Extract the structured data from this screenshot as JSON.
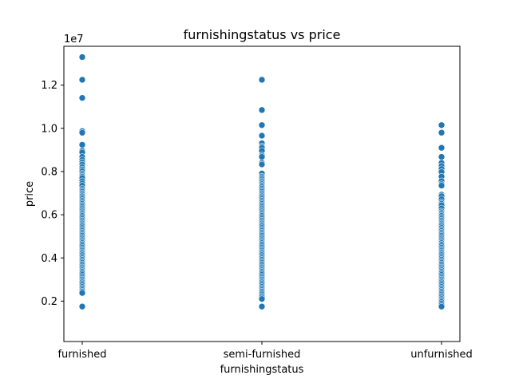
{
  "chart_data": {
    "type": "scatter",
    "title": "furnishingstatus vs price",
    "xlabel": "furnishingstatus",
    "ylabel": "price",
    "y_offset_label": "1e7",
    "categories": [
      "furnished",
      "semi-furnished",
      "unfurnished"
    ],
    "yticks": [
      0.2,
      0.4,
      0.6,
      0.8,
      1.0,
      1.2
    ],
    "ytick_labels": [
      "0.2",
      "0.4",
      "0.6",
      "0.8",
      "1.0",
      "1.2"
    ],
    "ylim": [
      0.13,
      13.8
    ],
    "y_scale_note": "y tick labels are in units of 1e7",
    "grid": false,
    "legend": "none",
    "point_color": "#1f77b4",
    "series": [
      {
        "category": "furnished",
        "values": [
          13.3,
          12.25,
          11.41,
          9.87,
          9.8,
          9.24,
          8.96,
          8.89,
          8.68,
          8.54,
          8.43,
          8.33,
          8.2,
          8.1,
          8.01,
          7.91,
          7.84,
          7.77,
          7.7,
          7.56,
          7.45,
          7.35,
          7.21,
          7.14,
          7.07,
          7.0,
          6.93,
          6.86,
          6.79,
          6.72,
          6.65,
          6.58,
          6.51,
          6.44,
          6.37,
          6.3,
          6.23,
          6.16,
          6.09,
          6.02,
          5.95,
          5.88,
          5.81,
          5.74,
          5.67,
          5.6,
          5.53,
          5.46,
          5.39,
          5.32,
          5.25,
          5.18,
          5.11,
          5.04,
          4.97,
          4.9,
          4.83,
          4.76,
          4.69,
          4.62,
          4.55,
          4.48,
          4.41,
          4.34,
          4.27,
          4.2,
          4.13,
          4.06,
          3.99,
          3.92,
          3.85,
          3.78,
          3.71,
          3.64,
          3.57,
          3.5,
          3.43,
          3.36,
          3.29,
          3.22,
          3.15,
          3.08,
          3.01,
          2.94,
          2.87,
          2.8,
          2.73,
          2.66,
          2.59,
          2.52,
          2.45,
          2.38,
          1.75
        ]
      },
      {
        "category": "semi-furnished",
        "values": [
          12.25,
          10.85,
          10.15,
          9.66,
          9.31,
          9.17,
          9.1,
          8.96,
          8.75,
          8.68,
          8.4,
          8.33,
          7.91,
          7.77,
          7.7,
          7.63,
          7.56,
          7.49,
          7.42,
          7.35,
          7.28,
          7.21,
          7.14,
          7.07,
          7.0,
          6.93,
          6.86,
          6.79,
          6.72,
          6.65,
          6.58,
          6.51,
          6.44,
          6.37,
          6.3,
          6.23,
          6.16,
          6.09,
          6.02,
          5.95,
          5.88,
          5.81,
          5.74,
          5.67,
          5.6,
          5.53,
          5.46,
          5.39,
          5.32,
          5.25,
          5.18,
          5.11,
          5.04,
          4.97,
          4.9,
          4.83,
          4.76,
          4.69,
          4.62,
          4.55,
          4.48,
          4.41,
          4.34,
          4.27,
          4.2,
          4.13,
          4.06,
          3.99,
          3.92,
          3.85,
          3.78,
          3.71,
          3.64,
          3.57,
          3.5,
          3.43,
          3.36,
          3.29,
          3.22,
          3.15,
          3.08,
          3.01,
          2.94,
          2.87,
          2.8,
          2.73,
          2.66,
          2.59,
          2.52,
          2.45,
          2.38,
          2.31,
          2.24,
          2.17,
          2.1,
          1.75
        ]
      },
      {
        "category": "unfurnished",
        "values": [
          10.15,
          9.8,
          9.1,
          8.68,
          8.4,
          8.26,
          8.12,
          7.98,
          7.77,
          7.56,
          7.42,
          7.35,
          6.93,
          6.86,
          6.72,
          6.58,
          6.51,
          6.44,
          6.3,
          6.16,
          6.09,
          6.02,
          5.95,
          5.88,
          5.81,
          5.74,
          5.67,
          5.6,
          5.53,
          5.46,
          5.39,
          5.32,
          5.25,
          5.18,
          5.11,
          5.04,
          4.97,
          4.9,
          4.83,
          4.76,
          4.69,
          4.62,
          4.55,
          4.48,
          4.41,
          4.34,
          4.27,
          4.2,
          4.13,
          4.06,
          3.99,
          3.92,
          3.85,
          3.78,
          3.71,
          3.64,
          3.57,
          3.5,
          3.43,
          3.36,
          3.29,
          3.22,
          3.15,
          3.08,
          3.01,
          2.94,
          2.87,
          2.8,
          2.73,
          2.66,
          2.59,
          2.52,
          2.45,
          2.38,
          2.31,
          2.24,
          2.17,
          2.1,
          2.03,
          1.96,
          1.89,
          1.82,
          1.75
        ]
      }
    ]
  }
}
